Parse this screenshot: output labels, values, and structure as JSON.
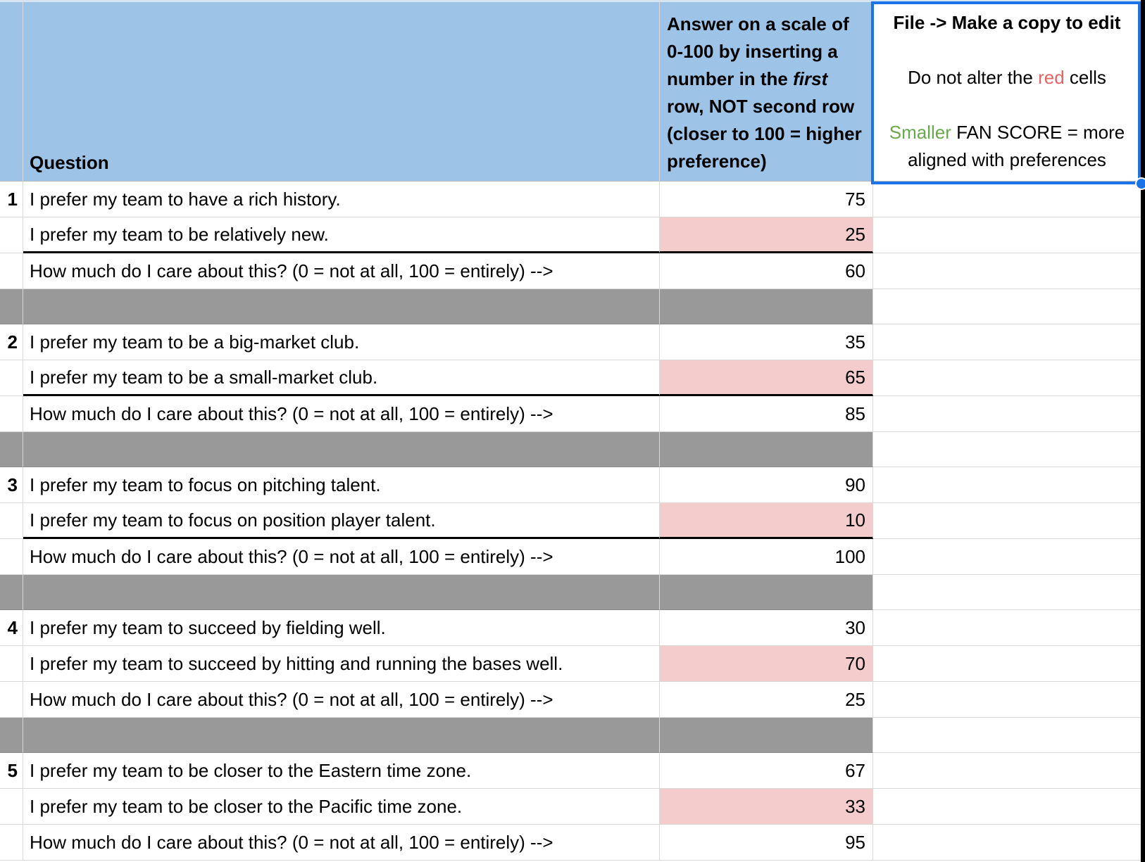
{
  "colors": {
    "header_blue": "#9dc3e6",
    "pink_cell": "#f4cccc",
    "separator_gray": "#999999",
    "selection_blue": "#1a73e8",
    "gridline": "#d9d9d9",
    "thick_divider": "#000000",
    "red_word": "#e06666",
    "green_word": "#6aa84f"
  },
  "header": {
    "question_label": "Question",
    "answer_instruction": {
      "pre": "Answer on a scale of 0-100 by inserting a number in the ",
      "italic": "first",
      "post": " row, NOT second row (closer to 100 = higher preference)"
    },
    "notes": {
      "line1": "File -> Make a copy to edit",
      "line2": {
        "pre": "Do not alter the ",
        "highlight": "red",
        "post": " cells"
      },
      "line3": {
        "highlight": "Smaller",
        "post": " FAN SCORE = more aligned with preferences"
      }
    }
  },
  "groups": [
    {
      "number": "1",
      "first_statement": "I prefer my team to have a rich history.",
      "first_score": "75",
      "second_statement": "I prefer my team to be relatively new.",
      "second_score": "25",
      "care_question": "How much do I care about this? (0 = not at all, 100 = entirely) -->",
      "care_score": "60",
      "thick_divider": true
    },
    {
      "number": "2",
      "first_statement": "I prefer my team to be a big-market club.",
      "first_score": "35",
      "second_statement": "I prefer my team to be a small-market club.",
      "second_score": "65",
      "care_question": "How much do I care about this? (0 = not at all, 100 = entirely) -->",
      "care_score": "85",
      "thick_divider": true
    },
    {
      "number": "3",
      "first_statement": "I prefer my team to focus on pitching talent.",
      "first_score": "90",
      "second_statement": "I prefer my team to focus on position player talent.",
      "second_score": "10",
      "care_question": "How much do I care about this? (0 = not at all, 100 = entirely) -->",
      "care_score": "100",
      "thick_divider": true
    },
    {
      "number": "4",
      "first_statement": "I prefer my team to succeed by fielding well.",
      "first_score": "30",
      "second_statement": "I prefer my team to succeed by hitting and running the bases well.",
      "second_score": "70",
      "care_question": "How much do I care about this? (0 = not at all, 100 = entirely) -->",
      "care_score": "25",
      "thick_divider": false
    },
    {
      "number": "5",
      "first_statement": "I prefer my team to be closer to the Eastern time zone.",
      "first_score": "67",
      "second_statement": "I prefer my team to be closer to the Pacific time zone.",
      "second_score": "33",
      "care_question": "How much do I care about this? (0 = not at all, 100 = entirely) -->",
      "care_score": "95",
      "thick_divider": false
    }
  ]
}
